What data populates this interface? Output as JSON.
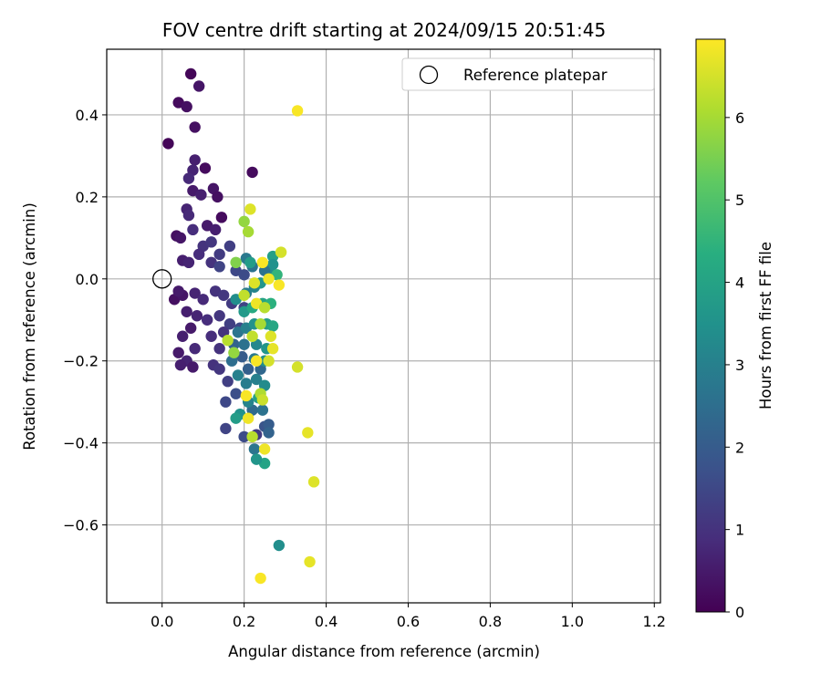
{
  "chart_data": {
    "type": "scatter",
    "title": "FOV centre drift starting at 2024/09/15 20:51:45",
    "xlabel": "Angular distance from reference (arcmin)",
    "ylabel": "Rotation from reference (arcmin)",
    "xlim": [
      -0.135,
      1.215
    ],
    "ylim": [
      -0.79,
      0.56
    ],
    "xticks": [
      0.0,
      0.2,
      0.4,
      0.6,
      0.8,
      1.0,
      1.2
    ],
    "xtick_labels": [
      "0.0",
      "0.2",
      "0.4",
      "0.6",
      "0.8",
      "1.0",
      "1.2"
    ],
    "yticks": [
      0.4,
      0.2,
      0.0,
      -0.2,
      -0.4,
      -0.6
    ],
    "ytick_labels": [
      "0.4",
      "0.2",
      "0.0",
      "−0.2",
      "−0.4",
      "−0.6"
    ],
    "grid": true,
    "legend": {
      "placement": "top-right",
      "entries": [
        "Reference platepar"
      ]
    },
    "reference_point": {
      "x": 0.0,
      "y": 0.0,
      "label": "Reference platepar"
    },
    "colorbar": {
      "label": "Hours from first FF file",
      "colormap": "viridis",
      "range": [
        0,
        6.95
      ],
      "ticks": [
        0,
        1,
        2,
        3,
        4,
        5,
        6
      ],
      "tick_labels": [
        "0",
        "1",
        "2",
        "3",
        "4",
        "5",
        "6"
      ]
    },
    "points": [
      {
        "x": 0.07,
        "y": 0.5,
        "c": 0.1
      },
      {
        "x": 0.04,
        "y": 0.43,
        "c": 0.2
      },
      {
        "x": 0.06,
        "y": 0.42,
        "c": 0.3
      },
      {
        "x": 0.09,
        "y": 0.47,
        "c": 0.4
      },
      {
        "x": 0.08,
        "y": 0.37,
        "c": 0.3
      },
      {
        "x": 0.015,
        "y": 0.33,
        "c": 0.1
      },
      {
        "x": 0.08,
        "y": 0.29,
        "c": 0.6
      },
      {
        "x": 0.075,
        "y": 0.265,
        "c": 0.7
      },
      {
        "x": 0.105,
        "y": 0.27,
        "c": 0.2
      },
      {
        "x": 0.065,
        "y": 0.245,
        "c": 0.8
      },
      {
        "x": 0.22,
        "y": 0.26,
        "c": 0.2
      },
      {
        "x": 0.075,
        "y": 0.215,
        "c": 0.5
      },
      {
        "x": 0.095,
        "y": 0.205,
        "c": 0.6
      },
      {
        "x": 0.125,
        "y": 0.22,
        "c": 0.4
      },
      {
        "x": 0.135,
        "y": 0.2,
        "c": 0.3
      },
      {
        "x": 0.06,
        "y": 0.17,
        "c": 0.7
      },
      {
        "x": 0.065,
        "y": 0.155,
        "c": 0.8
      },
      {
        "x": 0.145,
        "y": 0.15,
        "c": 0.2
      },
      {
        "x": 0.11,
        "y": 0.13,
        "c": 0.5
      },
      {
        "x": 0.035,
        "y": 0.105,
        "c": 0.3
      },
      {
        "x": 0.045,
        "y": 0.1,
        "c": 0.4
      },
      {
        "x": 0.075,
        "y": 0.12,
        "c": 0.9
      },
      {
        "x": 0.13,
        "y": 0.12,
        "c": 0.6
      },
      {
        "x": 0.1,
        "y": 0.08,
        "c": 1.0
      },
      {
        "x": 0.12,
        "y": 0.09,
        "c": 1.1
      },
      {
        "x": 0.14,
        "y": 0.06,
        "c": 1.2
      },
      {
        "x": 0.165,
        "y": 0.08,
        "c": 1.3
      },
      {
        "x": 0.09,
        "y": 0.06,
        "c": 0.9
      },
      {
        "x": 0.05,
        "y": 0.045,
        "c": 0.6
      },
      {
        "x": 0.065,
        "y": 0.04,
        "c": 0.7
      },
      {
        "x": 0.12,
        "y": 0.04,
        "c": 1.0
      },
      {
        "x": 0.14,
        "y": 0.03,
        "c": 1.4
      },
      {
        "x": 0.18,
        "y": 0.02,
        "c": 1.5
      },
      {
        "x": 0.2,
        "y": 0.01,
        "c": 1.6
      },
      {
        "x": 0.205,
        "y": 0.05,
        "c": 2.8
      },
      {
        "x": 0.22,
        "y": 0.03,
        "c": 2.6
      },
      {
        "x": 0.03,
        "y": -0.05,
        "c": 0.3
      },
      {
        "x": 0.05,
        "y": -0.04,
        "c": 0.4
      },
      {
        "x": 0.04,
        "y": -0.03,
        "c": 0.5
      },
      {
        "x": 0.08,
        "y": -0.035,
        "c": 0.7
      },
      {
        "x": 0.1,
        "y": -0.05,
        "c": 0.8
      },
      {
        "x": 0.13,
        "y": -0.03,
        "c": 1.0
      },
      {
        "x": 0.15,
        "y": -0.04,
        "c": 1.1
      },
      {
        "x": 0.17,
        "y": -0.06,
        "c": 1.2
      },
      {
        "x": 0.2,
        "y": -0.07,
        "c": 1.4
      },
      {
        "x": 0.06,
        "y": -0.08,
        "c": 0.6
      },
      {
        "x": 0.085,
        "y": -0.09,
        "c": 0.7
      },
      {
        "x": 0.11,
        "y": -0.1,
        "c": 0.9
      },
      {
        "x": 0.14,
        "y": -0.09,
        "c": 1.1
      },
      {
        "x": 0.165,
        "y": -0.11,
        "c": 1.3
      },
      {
        "x": 0.19,
        "y": -0.12,
        "c": 1.5
      },
      {
        "x": 0.07,
        "y": -0.12,
        "c": 0.5
      },
      {
        "x": 0.12,
        "y": -0.14,
        "c": 0.9
      },
      {
        "x": 0.15,
        "y": -0.13,
        "c": 1.0
      },
      {
        "x": 0.05,
        "y": -0.14,
        "c": 0.6
      },
      {
        "x": 0.08,
        "y": -0.17,
        "c": 0.8
      },
      {
        "x": 0.14,
        "y": -0.17,
        "c": 1.0
      },
      {
        "x": 0.04,
        "y": -0.18,
        "c": 0.5
      },
      {
        "x": 0.06,
        "y": -0.2,
        "c": 0.7
      },
      {
        "x": 0.075,
        "y": -0.215,
        "c": 0.5
      },
      {
        "x": 0.045,
        "y": -0.21,
        "c": 0.6
      },
      {
        "x": 0.125,
        "y": -0.21,
        "c": 1.0
      },
      {
        "x": 0.14,
        "y": -0.22,
        "c": 1.1
      },
      {
        "x": 0.16,
        "y": -0.25,
        "c": 1.3
      },
      {
        "x": 0.155,
        "y": -0.3,
        "c": 1.5
      },
      {
        "x": 0.18,
        "y": -0.28,
        "c": 1.7
      },
      {
        "x": 0.155,
        "y": -0.365,
        "c": 1.4
      },
      {
        "x": 0.2,
        "y": -0.385,
        "c": 1.6
      },
      {
        "x": 0.23,
        "y": -0.38,
        "c": 1.2
      },
      {
        "x": 0.225,
        "y": -0.415,
        "c": 2.7
      },
      {
        "x": 0.25,
        "y": -0.45,
        "c": 4.0
      },
      {
        "x": 0.23,
        "y": -0.44,
        "c": 3.6
      },
      {
        "x": 0.25,
        "y": -0.36,
        "c": 1.8
      },
      {
        "x": 0.26,
        "y": -0.355,
        "c": 2.0
      },
      {
        "x": 0.26,
        "y": -0.375,
        "c": 2.2
      },
      {
        "x": 0.19,
        "y": -0.33,
        "c": 3.5
      },
      {
        "x": 0.18,
        "y": -0.34,
        "c": 3.8
      },
      {
        "x": 0.22,
        "y": -0.32,
        "c": 2.4
      },
      {
        "x": 0.245,
        "y": -0.32,
        "c": 2.6
      },
      {
        "x": 0.21,
        "y": -0.3,
        "c": 3.1
      },
      {
        "x": 0.235,
        "y": -0.29,
        "c": 3.9
      },
      {
        "x": 0.205,
        "y": -0.255,
        "c": 2.9
      },
      {
        "x": 0.23,
        "y": -0.245,
        "c": 3.0
      },
      {
        "x": 0.25,
        "y": -0.26,
        "c": 3.3
      },
      {
        "x": 0.185,
        "y": -0.235,
        "c": 3.0
      },
      {
        "x": 0.21,
        "y": -0.22,
        "c": 2.1
      },
      {
        "x": 0.24,
        "y": -0.22,
        "c": 2.3
      },
      {
        "x": 0.17,
        "y": -0.2,
        "c": 2.5
      },
      {
        "x": 0.195,
        "y": -0.19,
        "c": 2.0
      },
      {
        "x": 0.225,
        "y": -0.195,
        "c": 2.8
      },
      {
        "x": 0.25,
        "y": -0.2,
        "c": 3.4
      },
      {
        "x": 0.175,
        "y": -0.16,
        "c": 2.2
      },
      {
        "x": 0.2,
        "y": -0.16,
        "c": 2.6
      },
      {
        "x": 0.23,
        "y": -0.16,
        "c": 3.2
      },
      {
        "x": 0.255,
        "y": -0.17,
        "c": 3.6
      },
      {
        "x": 0.185,
        "y": -0.13,
        "c": 2.7
      },
      {
        "x": 0.205,
        "y": -0.12,
        "c": 3.0
      },
      {
        "x": 0.225,
        "y": -0.11,
        "c": 3.5
      },
      {
        "x": 0.255,
        "y": -0.11,
        "c": 3.8
      },
      {
        "x": 0.27,
        "y": -0.115,
        "c": 4.1
      },
      {
        "x": 0.18,
        "y": -0.05,
        "c": 3.4
      },
      {
        "x": 0.2,
        "y": -0.08,
        "c": 3.7
      },
      {
        "x": 0.22,
        "y": -0.07,
        "c": 4.2
      },
      {
        "x": 0.245,
        "y": -0.06,
        "c": 4.0
      },
      {
        "x": 0.265,
        "y": -0.06,
        "c": 4.4
      },
      {
        "x": 0.205,
        "y": -0.035,
        "c": 2.9
      },
      {
        "x": 0.225,
        "y": -0.02,
        "c": 3.1
      },
      {
        "x": 0.24,
        "y": -0.01,
        "c": 3.6
      },
      {
        "x": 0.265,
        "y": 0.01,
        "c": 3.3
      },
      {
        "x": 0.27,
        "y": 0.055,
        "c": 3.9
      },
      {
        "x": 0.27,
        "y": 0.035,
        "c": 3.5
      },
      {
        "x": 0.25,
        "y": 0.02,
        "c": 2.6
      },
      {
        "x": 0.28,
        "y": 0.01,
        "c": 4.5
      },
      {
        "x": 0.215,
        "y": 0.04,
        "c": 3.8
      },
      {
        "x": 0.18,
        "y": 0.04,
        "c": 5.6
      },
      {
        "x": 0.2,
        "y": 0.14,
        "c": 5.8
      },
      {
        "x": 0.21,
        "y": 0.115,
        "c": 6.0
      },
      {
        "x": 0.215,
        "y": 0.17,
        "c": 6.6
      },
      {
        "x": 0.33,
        "y": 0.41,
        "c": 6.9
      },
      {
        "x": 0.29,
        "y": 0.065,
        "c": 6.5
      },
      {
        "x": 0.245,
        "y": 0.04,
        "c": 6.9
      },
      {
        "x": 0.2,
        "y": -0.04,
        "c": 6.3
      },
      {
        "x": 0.225,
        "y": -0.01,
        "c": 6.6
      },
      {
        "x": 0.23,
        "y": -0.06,
        "c": 6.8
      },
      {
        "x": 0.25,
        "y": -0.07,
        "c": 6.2
      },
      {
        "x": 0.285,
        "y": -0.015,
        "c": 6.9
      },
      {
        "x": 0.26,
        "y": 0.0,
        "c": 6.8
      },
      {
        "x": 0.24,
        "y": -0.11,
        "c": 6.0
      },
      {
        "x": 0.22,
        "y": -0.14,
        "c": 6.3
      },
      {
        "x": 0.265,
        "y": -0.14,
        "c": 6.6
      },
      {
        "x": 0.27,
        "y": -0.17,
        "c": 6.7
      },
      {
        "x": 0.16,
        "y": -0.15,
        "c": 6.2
      },
      {
        "x": 0.175,
        "y": -0.18,
        "c": 5.8
      },
      {
        "x": 0.23,
        "y": -0.2,
        "c": 6.9
      },
      {
        "x": 0.26,
        "y": -0.2,
        "c": 6.5
      },
      {
        "x": 0.33,
        "y": -0.215,
        "c": 6.5
      },
      {
        "x": 0.205,
        "y": -0.285,
        "c": 6.9
      },
      {
        "x": 0.24,
        "y": -0.28,
        "c": 6.1
      },
      {
        "x": 0.245,
        "y": -0.295,
        "c": 6.4
      },
      {
        "x": 0.21,
        "y": -0.34,
        "c": 6.8
      },
      {
        "x": 0.22,
        "y": -0.385,
        "c": 6.2
      },
      {
        "x": 0.25,
        "y": -0.415,
        "c": 6.8
      },
      {
        "x": 0.355,
        "y": -0.375,
        "c": 6.7
      },
      {
        "x": 0.37,
        "y": -0.495,
        "c": 6.6
      },
      {
        "x": 0.285,
        "y": -0.65,
        "c": 3.4
      },
      {
        "x": 0.36,
        "y": -0.69,
        "c": 6.7
      },
      {
        "x": 0.24,
        "y": -0.73,
        "c": 6.9
      }
    ]
  }
}
